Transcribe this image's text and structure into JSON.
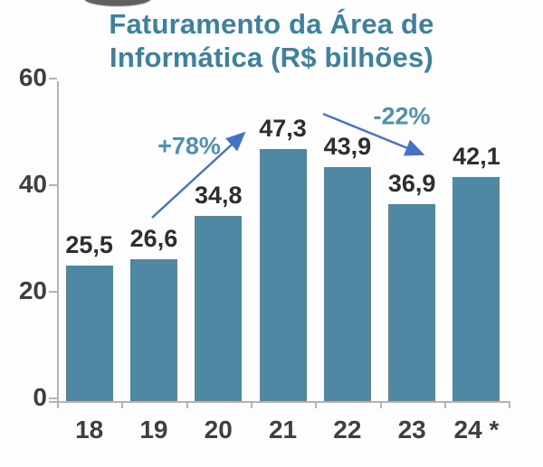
{
  "title": {
    "line1": "Faturamento da Área de",
    "line2": "Informática (R$ bilhões)"
  },
  "colors": {
    "bar": "#4e88a2",
    "title": "#3b82a0",
    "annotation": "#4e93ae",
    "arrow": "#4472c4",
    "axis": "#b3b3b3",
    "value_label": "#2e2e2e",
    "axis_label": "#3f3f3f"
  },
  "chart_data": {
    "type": "bar",
    "title": "Faturamento da Área de Informática (R$ bilhões)",
    "xlabel": "",
    "ylabel": "",
    "categories": [
      "18",
      "19",
      "20",
      "21",
      "22",
      "23",
      "24 *"
    ],
    "values": [
      25.5,
      26.6,
      34.8,
      47.3,
      43.9,
      36.9,
      42.1
    ],
    "value_labels": [
      "25,5",
      "26,6",
      "34,8",
      "47,3",
      "43,9",
      "36,9",
      "42,1"
    ],
    "y_ticks": [
      0,
      20,
      40,
      60
    ],
    "ylim": [
      0,
      60
    ],
    "grid": false,
    "legend": false,
    "annotations": [
      {
        "text": "+78%",
        "meaning": "increase from 2019 (26.6) to 2021 (47.3)",
        "direction": "up"
      },
      {
        "text": "-22%",
        "meaning": "decrease from 2021 (47.3) to 2023 (36.9)",
        "direction": "down"
      }
    ],
    "footnote_marker": "* on category 24 indicates estimate"
  }
}
